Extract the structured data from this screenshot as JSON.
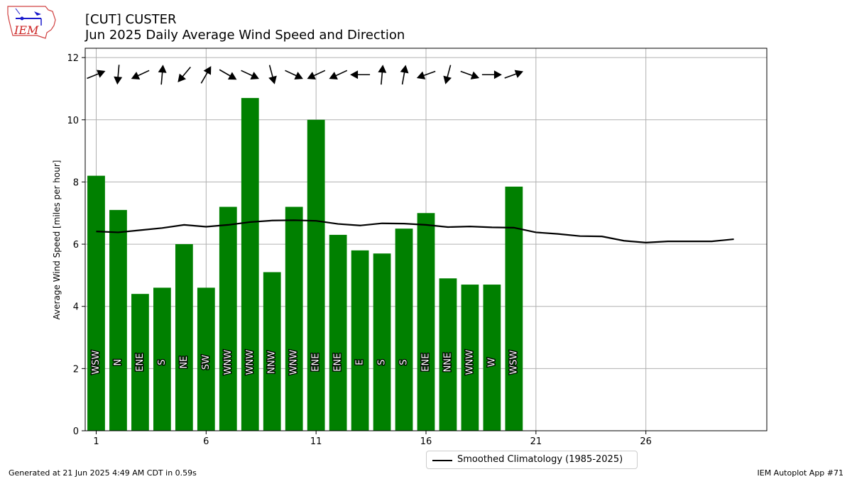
{
  "header": {
    "title_line1": "[CUT] CUSTER",
    "title_line2": "Jun 2025 Daily Average Wind Speed and Direction",
    "logo_text": "IEM"
  },
  "footer": {
    "generated": "Generated at 21 Jun 2025 4:49 AM CDT in 0.59s",
    "app": "IEM Autoplot App #71"
  },
  "legend": {
    "climatology_label": "Smoothed Climatology (1985-2025)"
  },
  "colors": {
    "bar": "#008000",
    "climatology_line": "#000000",
    "grid": "#b0b0b0"
  },
  "chart_data": {
    "type": "bar",
    "ylabel": "Average Wind Speed [miles per hour]",
    "xlabel": "",
    "ylim": [
      0,
      12.3
    ],
    "xlim": [
      0.5,
      31.5
    ],
    "grid": true,
    "legend_position": "bottom-center",
    "x_ticks": [
      1,
      6,
      11,
      16,
      21,
      26
    ],
    "y_ticks": [
      0,
      2,
      4,
      6,
      8,
      10,
      12
    ],
    "days": [
      1,
      2,
      3,
      4,
      5,
      6,
      7,
      8,
      9,
      10,
      11,
      12,
      13,
      14,
      15,
      16,
      17,
      18,
      19,
      20
    ],
    "speed": [
      8.2,
      7.1,
      4.4,
      4.6,
      6.0,
      4.6,
      7.2,
      10.7,
      5.1,
      7.2,
      10.0,
      6.3,
      5.8,
      5.7,
      6.5,
      7.0,
      4.9,
      4.7,
      4.7,
      7.85
    ],
    "direction": [
      "WSW",
      "N",
      "ENE",
      "S",
      "NE",
      "SW",
      "WNW",
      "WNW",
      "NNW",
      "WNW",
      "ENE",
      "ENE",
      "E",
      "S",
      "S",
      "ENE",
      "NNE",
      "WNW",
      "W",
      "WSW"
    ],
    "direction_degrees": [
      248,
      5,
      65,
      185,
      40,
      210,
      300,
      295,
      345,
      295,
      65,
      65,
      90,
      185,
      190,
      70,
      15,
      290,
      270,
      250
    ],
    "climatology": {
      "name": "Smoothed Climatology (1985-2025)",
      "x": [
        1,
        2,
        3,
        4,
        5,
        6,
        7,
        8,
        9,
        10,
        11,
        12,
        13,
        14,
        15,
        16,
        17,
        18,
        19,
        20,
        21,
        22,
        23,
        24,
        25,
        26,
        27,
        28,
        29,
        30
      ],
      "y": [
        6.41,
        6.38,
        6.45,
        6.52,
        6.62,
        6.56,
        6.62,
        6.71,
        6.76,
        6.77,
        6.75,
        6.65,
        6.6,
        6.67,
        6.66,
        6.62,
        6.55,
        6.57,
        6.54,
        6.53,
        6.38,
        6.33,
        6.26,
        6.25,
        6.11,
        6.05,
        6.09,
        6.09,
        6.09,
        6.16
      ]
    }
  }
}
